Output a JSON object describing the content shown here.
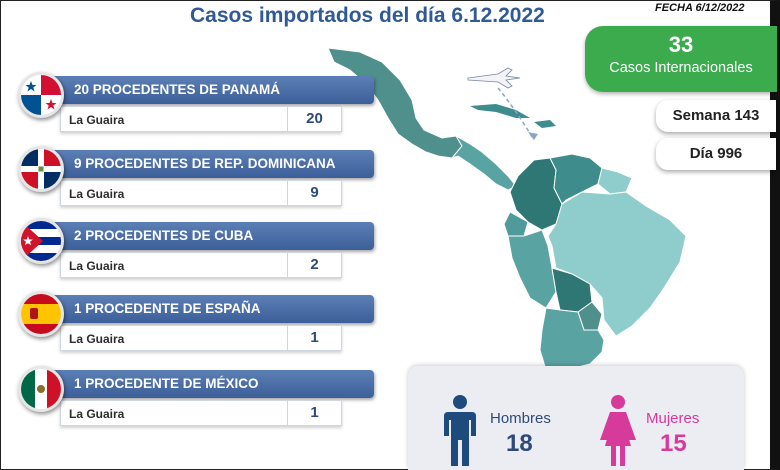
{
  "header": {
    "title": "Casos importados del día 6.12.2022",
    "fecha": "FECHA 6/12/2022"
  },
  "international": {
    "count": "33",
    "label": "Casos Internacionales"
  },
  "semana": "Semana 143",
  "dia": "Día 996",
  "countries": [
    {
      "heading": "20 PROCEDENTES DE PANAMÁ",
      "city": "La Guaira",
      "count": "20",
      "flag": "panama-flag"
    },
    {
      "heading": "9 PROCEDENTES DE REP. DOMINICANA",
      "city": "La Guaira",
      "count": "9",
      "flag": "dominican-republic-flag"
    },
    {
      "heading": "2 PROCEDENTES DE CUBA",
      "city": "La Guaira",
      "count": "2",
      "flag": "cuba-flag"
    },
    {
      "heading": "1 PROCEDENTE DE ESPAÑA",
      "city": "La Guaira",
      "count": "1",
      "flag": "spain-flag"
    },
    {
      "heading": "1 PROCEDENTE DE MÉXICO",
      "city": "La Guaira",
      "count": "1",
      "flag": "mexico-flag"
    }
  ],
  "gender": {
    "men_label": "Hombres",
    "men_count": "18",
    "women_label": "Mujeres",
    "women_count": "15",
    "men_color": "#1f4a7d",
    "women_color": "#d63a9b"
  },
  "colors": {
    "accent_blue": "#3d5f99",
    "green": "#3cab4e",
    "map_teal": "#3f8c8c"
  }
}
